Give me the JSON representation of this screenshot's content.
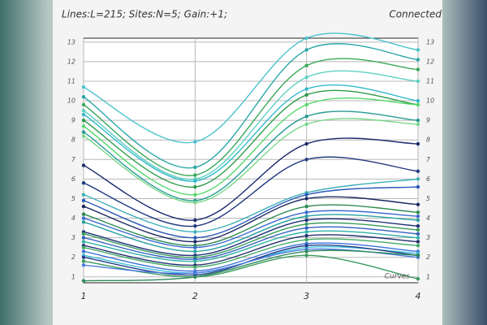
{
  "header": {
    "info": "Lines:L=215; Sites:N=5; Gain:+1;",
    "status": "Connected"
  },
  "chart_data": {
    "type": "line",
    "annotation": "Curves",
    "x": [
      1,
      2,
      3,
      4
    ],
    "xlim": [
      1,
      4
    ],
    "xticks": [
      1,
      2,
      3,
      4
    ],
    "ylim": [
      0.7,
      13.2
    ],
    "yticks": [
      1,
      2,
      3,
      4,
      5,
      6,
      7,
      8,
      9,
      10,
      11,
      12,
      13
    ],
    "grid": true,
    "series": [
      {
        "color": "#4cc3d0",
        "values": [
          10.7,
          7.9,
          13.2,
          12.6
        ]
      },
      {
        "color": "#2aa7a8",
        "values": [
          10.2,
          6.6,
          12.6,
          12.1
        ]
      },
      {
        "color": "#3aa85a",
        "values": [
          9.8,
          6.2,
          11.8,
          11.6
        ]
      },
      {
        "color": "#5fd0c0",
        "values": [
          9.5,
          6.0,
          11.2,
          11.0
        ]
      },
      {
        "color": "#33b8cc",
        "values": [
          9.3,
          5.9,
          10.6,
          10.0
        ]
      },
      {
        "color": "#2e9a4a",
        "values": [
          9.0,
          5.6,
          10.3,
          9.8
        ]
      },
      {
        "color": "#55d86a",
        "values": [
          8.7,
          5.2,
          9.8,
          9.8
        ]
      },
      {
        "color": "#279a94",
        "values": [
          8.4,
          4.9,
          9.2,
          9.0
        ]
      },
      {
        "color": "#7ad88a",
        "values": [
          8.2,
          4.8,
          8.8,
          8.8
        ]
      },
      {
        "color": "#1c2a6e",
        "values": [
          6.7,
          3.9,
          7.8,
          7.8
        ]
      },
      {
        "color": "#233a80",
        "values": [
          5.8,
          3.6,
          7.0,
          6.4
        ]
      },
      {
        "color": "#3cb0b8",
        "values": [
          5.2,
          3.3,
          5.3,
          6.0
        ]
      },
      {
        "color": "#2b58b8",
        "values": [
          4.9,
          3.0,
          5.2,
          5.6
        ]
      },
      {
        "color": "#1a2860",
        "values": [
          4.6,
          2.8,
          5.0,
          4.7
        ]
      },
      {
        "color": "#2d8a50",
        "values": [
          4.2,
          2.6,
          4.6,
          4.3
        ]
      },
      {
        "color": "#3a6ad0",
        "values": [
          4.0,
          2.5,
          4.3,
          4.1
        ]
      },
      {
        "color": "#2aa0a0",
        "values": [
          3.8,
          2.3,
          4.1,
          3.9
        ]
      },
      {
        "color": "#1e2f78",
        "values": [
          3.3,
          2.1,
          3.9,
          3.6
        ]
      },
      {
        "color": "#3c9a5c",
        "values": [
          3.2,
          2.0,
          3.7,
          3.4
        ]
      },
      {
        "color": "#3060c0",
        "values": [
          3.0,
          1.9,
          3.5,
          3.2
        ]
      },
      {
        "color": "#30b0a8",
        "values": [
          2.8,
          1.8,
          3.3,
          3.0
        ]
      },
      {
        "color": "#22306e",
        "values": [
          2.6,
          1.6,
          3.1,
          2.8
        ]
      },
      {
        "color": "#44a866",
        "values": [
          2.5,
          1.5,
          2.9,
          2.6
        ]
      },
      {
        "color": "#3c70d8",
        "values": [
          2.3,
          1.3,
          2.7,
          2.3
        ]
      },
      {
        "color": "#40c0d8",
        "values": [
          2.1,
          1.2,
          2.5,
          2.2
        ]
      },
      {
        "color": "#263c8a",
        "values": [
          2.0,
          1.1,
          2.6,
          2.1
        ]
      },
      {
        "color": "#3a9a5a",
        "values": [
          1.8,
          1.0,
          2.1,
          0.9
        ]
      },
      {
        "color": "#4a7ae0",
        "values": [
          1.6,
          1.2,
          2.4,
          2.0
        ]
      },
      {
        "color": "#2e8a5a",
        "values": [
          0.8,
          1.0,
          2.3,
          2.1
        ]
      }
    ]
  }
}
